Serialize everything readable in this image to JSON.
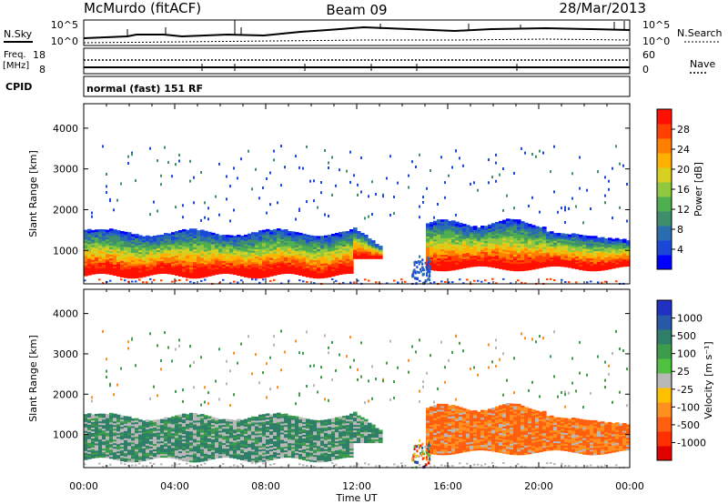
{
  "header": {
    "station": "McMurdo (fitACF)",
    "beam": "Beam 09",
    "date": "28/Mar/2013",
    "mode": "normal (fast) 151 RF"
  },
  "panels": {
    "nsky": {
      "left_label": "N.Sky",
      "right_label": "N.Search",
      "left_ticks": [
        "10^5",
        "10^0"
      ],
      "right_ticks": [
        "10^5",
        "10^0"
      ]
    },
    "freq": {
      "left_label_1": "Freq.",
      "left_label_2": "[MHz]",
      "right_label": "Nave",
      "left_ticks": [
        "18",
        "8"
      ],
      "right_ticks": [
        "60",
        "0"
      ]
    },
    "cpid": {
      "label": "CPID"
    }
  },
  "x_axis": {
    "label": "Time UT",
    "ticks": [
      "00:00",
      "04:00",
      "08:00",
      "12:00",
      "16:00",
      "20:00",
      "00:00"
    ]
  },
  "chart_data": [
    {
      "type": "heatmap",
      "panel": "power",
      "xlabel": "Time UT",
      "ylabel": "Slant Range [km]",
      "xlim": [
        "00:00",
        "24:00"
      ],
      "ylim": [
        180,
        4600
      ],
      "yticks": [
        1000,
        2000,
        3000,
        4000
      ],
      "colorbar": {
        "label": "Power [dB]",
        "ticks": [
          4,
          8,
          12,
          16,
          20,
          24,
          28
        ],
        "range": [
          0,
          32
        ],
        "colors": [
          "#0000ff",
          "#1c48d8",
          "#2a6eb0",
          "#3e8e6e",
          "#4fae50",
          "#90c840",
          "#d8d020",
          "#ffb000",
          "#ff8000",
          "#ff4000",
          "#ff1000"
        ]
      },
      "description_values": {
        "dense_band_km": [
          500,
          1500
        ],
        "data_gap_ut": [
          "13:00",
          "15:00"
        ]
      }
    },
    {
      "type": "heatmap",
      "panel": "velocity",
      "xlabel": "Time UT",
      "ylabel": "Slant Range [km]",
      "xlim": [
        "00:00",
        "24:00"
      ],
      "ylim": [
        180,
        4600
      ],
      "yticks": [
        1000,
        2000,
        3000,
        4000
      ],
      "colorbar": {
        "label": "Velocity [m s⁻¹]",
        "ticks": [
          "1000",
          "500",
          "100",
          "25",
          "-25",
          "-100",
          "-500",
          "-1000"
        ],
        "colors": [
          "#2030c0",
          "#2858a8",
          "#2f7f68",
          "#3c9c4c",
          "#50c040",
          "#b8b8b8",
          "#ffc000",
          "#ff9020",
          "#ff6010",
          "#ff3000",
          "#e00000"
        ]
      }
    }
  ]
}
